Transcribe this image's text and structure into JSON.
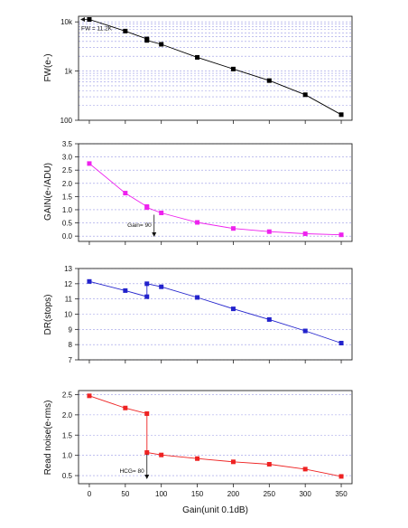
{
  "chart_data": [
    {
      "type": "line",
      "ylabel": "FW(e-)",
      "yscale": "log",
      "ylim": [
        100,
        13000
      ],
      "yticks": [
        "100",
        "1k",
        "10k"
      ],
      "grid": true,
      "color": "#000000",
      "series": [
        {
          "x": [
            0,
            50,
            80,
            80,
            100,
            150,
            200,
            250,
            300,
            350
          ],
          "y": [
            11200,
            6500,
            4500,
            4200,
            3500,
            1900,
            1100,
            640,
            330,
            130
          ]
        }
      ],
      "annotation": {
        "text": "FW = 11.2K",
        "x": 0,
        "y": 11200
      }
    },
    {
      "type": "line",
      "ylabel": "GAIN(e-/ADU)",
      "ylim": [
        -0.2,
        3.5
      ],
      "yticks": [
        "0.0",
        "0.5",
        "1.0",
        "1.5",
        "2.0",
        "2.5",
        "3.0",
        "3.5"
      ],
      "grid": true,
      "color": "#ee22ee",
      "series": [
        {
          "x": [
            0,
            50,
            80,
            80,
            100,
            150,
            200,
            250,
            300,
            350
          ],
          "y": [
            2.75,
            1.63,
            1.12,
            1.08,
            0.88,
            0.52,
            0.29,
            0.17,
            0.09,
            0.05
          ]
        }
      ],
      "annotation": {
        "text": "Gain= 90",
        "x": 90,
        "y": 0.88
      }
    },
    {
      "type": "line",
      "ylabel": "DR(stops)",
      "ylim": [
        7,
        13
      ],
      "yticks": [
        "7",
        "8",
        "9",
        "10",
        "11",
        "12",
        "13"
      ],
      "grid": true,
      "color": "#2222cc",
      "series": [
        {
          "x": [
            0,
            50,
            80,
            80,
            100,
            150,
            200,
            250,
            300,
            350
          ],
          "y": [
            12.15,
            11.55,
            11.15,
            12.0,
            11.8,
            11.1,
            10.35,
            9.65,
            8.9,
            8.1
          ]
        }
      ]
    },
    {
      "type": "line",
      "ylabel": "Read noise(e-rms)",
      "ylim": [
        0.3,
        2.6
      ],
      "yticks": [
        "0.5",
        "1.0",
        "1.5",
        "2.0",
        "2.5"
      ],
      "grid": true,
      "color": "#ee2222",
      "xlabel": "Gain(unit 0.1dB)",
      "xticks": [
        "0",
        "50",
        "100",
        "150",
        "200",
        "250",
        "300",
        "350"
      ],
      "xlim": [
        -15,
        365
      ],
      "series": [
        {
          "x": [
            0,
            50,
            80,
            80,
            100,
            150,
            200,
            250,
            300,
            350
          ],
          "y": [
            2.47,
            2.17,
            2.03,
            1.07,
            1.01,
            0.92,
            0.84,
            0.78,
            0.66,
            0.48
          ]
        }
      ],
      "annotation": {
        "text": "HCG= 80",
        "x": 80,
        "y": 1.07
      }
    }
  ]
}
